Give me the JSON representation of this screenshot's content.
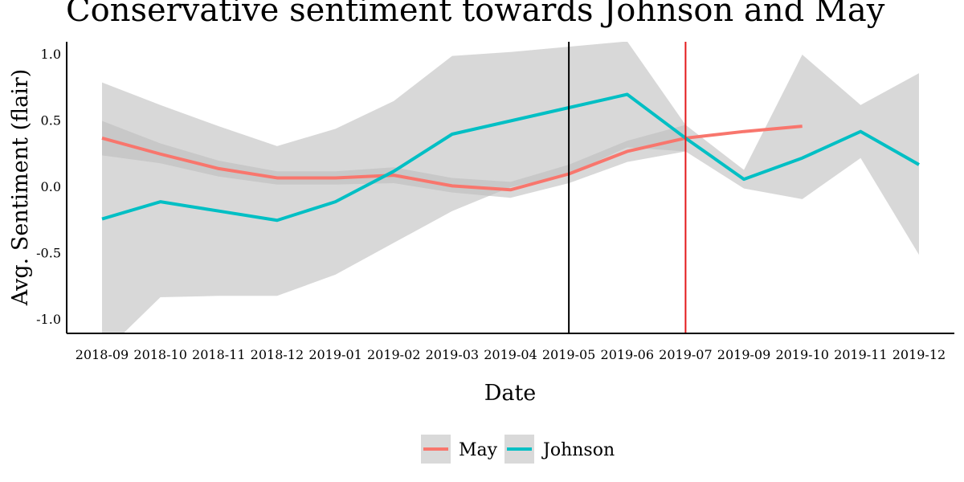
{
  "chart_data": {
    "type": "line",
    "title": "Conservative sentiment towards Johnson and May",
    "xlabel": "Date",
    "ylabel": "Avg. Sentiment (flair)",
    "categories": [
      "2018-09",
      "2018-10",
      "2018-11",
      "2018-12",
      "2019-01",
      "2019-02",
      "2019-03",
      "2019-04",
      "2019-05",
      "2019-06",
      "2019-07",
      "2019-09",
      "2019-10",
      "2019-11",
      "2019-12"
    ],
    "ylim": [
      -1.1,
      1.1
    ],
    "yticks": [
      1.0,
      0.5,
      0.0,
      -0.5,
      -1.0
    ],
    "ytick_labels": [
      "1.0",
      "0.5",
      "0.0",
      "-0.5",
      "-1.0"
    ],
    "grid": false,
    "legend_position": "bottom",
    "series": [
      {
        "name": "May",
        "color": "#F8766D",
        "values": [
          0.37,
          0.25,
          0.14,
          0.07,
          0.07,
          0.09,
          0.01,
          -0.02,
          0.1,
          0.27,
          0.37,
          0.42,
          0.46,
          null,
          null
        ],
        "ci_lower": [
          0.24,
          0.18,
          0.08,
          0.02,
          0.02,
          0.03,
          -0.04,
          -0.08,
          0.03,
          0.19,
          0.27,
          null,
          null,
          null,
          null
        ],
        "ci_upper": [
          0.5,
          0.33,
          0.2,
          0.12,
          0.12,
          0.15,
          0.07,
          0.04,
          0.17,
          0.35,
          0.47,
          null,
          null,
          null,
          null
        ]
      },
      {
        "name": "Johnson",
        "color": "#00BFC4",
        "values": [
          -0.24,
          -0.11,
          -0.18,
          -0.25,
          -0.11,
          0.12,
          0.4,
          0.5,
          0.6,
          0.7,
          0.37,
          0.06,
          0.22,
          0.42,
          0.17
        ],
        "ci_lower": [
          -1.26,
          -0.83,
          -0.82,
          -0.82,
          -0.66,
          -0.42,
          -0.18,
          0.0,
          0.1,
          0.3,
          0.27,
          -0.01,
          -0.09,
          0.22,
          -0.51
        ],
        "ci_upper": [
          0.79,
          0.62,
          0.46,
          0.31,
          0.44,
          0.65,
          0.99,
          1.02,
          1.06,
          1.1,
          0.47,
          0.13,
          1.0,
          0.62,
          0.86
        ]
      }
    ],
    "vlines": [
      {
        "x": "2019-05",
        "color": "#000000"
      },
      {
        "x": "2019-07",
        "color": "#E41A1C"
      }
    ],
    "ci_color": "#BEBEBE"
  }
}
